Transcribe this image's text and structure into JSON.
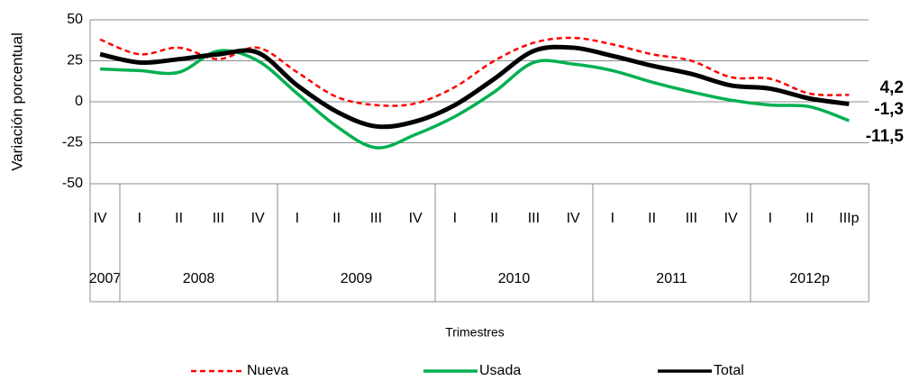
{
  "chart_data": {
    "type": "line",
    "y_label": "Variación porcentual",
    "x_label": "Trimestres",
    "categories": [
      "IV",
      "I",
      "II",
      "III",
      "IV",
      "I",
      "II",
      "III",
      "IV",
      "I",
      "II",
      "III",
      "IV",
      "I",
      "II",
      "III",
      "IV",
      "I",
      "II",
      "IIIp"
    ],
    "year_groups": [
      {
        "label": "2007",
        "count": 1
      },
      {
        "label": "2008",
        "count": 4
      },
      {
        "label": "2009",
        "count": 4
      },
      {
        "label": "2010",
        "count": 4
      },
      {
        "label": "2011",
        "count": 4
      },
      {
        "label": "2012p",
        "count": 3
      }
    ],
    "series": [
      {
        "name": "Nueva",
        "color": "#ff0000",
        "dashed": true,
        "values": [
          38,
          29,
          33,
          26,
          33,
          18,
          3,
          -2,
          -1,
          9,
          25,
          36,
          39,
          35,
          29,
          25,
          15,
          14,
          5,
          4.2
        ],
        "value_labels": [
          null,
          null,
          null,
          null,
          null,
          null,
          null,
          null,
          null,
          null,
          null,
          null,
          null,
          null,
          null,
          null,
          null,
          null,
          null,
          "4,2"
        ]
      },
      {
        "name": "Usada",
        "color": "#00b050",
        "dashed": false,
        "values": [
          20,
          19,
          18,
          31,
          25,
          5,
          -15,
          -28,
          -20,
          -9,
          6,
          24,
          23,
          19,
          12,
          6,
          1,
          -2,
          -3,
          -11.5
        ],
        "value_labels": [
          null,
          null,
          null,
          null,
          null,
          null,
          null,
          null,
          null,
          null,
          null,
          null,
          null,
          null,
          null,
          null,
          null,
          null,
          null,
          "-11,5"
        ]
      },
      {
        "name": "Total",
        "color": "#000000",
        "dashed": false,
        "values": [
          29,
          24,
          26,
          29,
          30,
          10,
          -6,
          -15,
          -12,
          -2,
          14,
          31,
          33,
          28,
          22,
          17,
          10,
          8,
          2,
          -1.3
        ],
        "value_labels": [
          null,
          null,
          null,
          null,
          null,
          null,
          null,
          null,
          null,
          null,
          null,
          null,
          null,
          null,
          null,
          null,
          null,
          null,
          null,
          "-1,3"
        ]
      }
    ],
    "ylim": [
      -50,
      50
    ],
    "yticks": [
      -50,
      -25,
      0,
      25,
      50
    ],
    "grid": true
  }
}
